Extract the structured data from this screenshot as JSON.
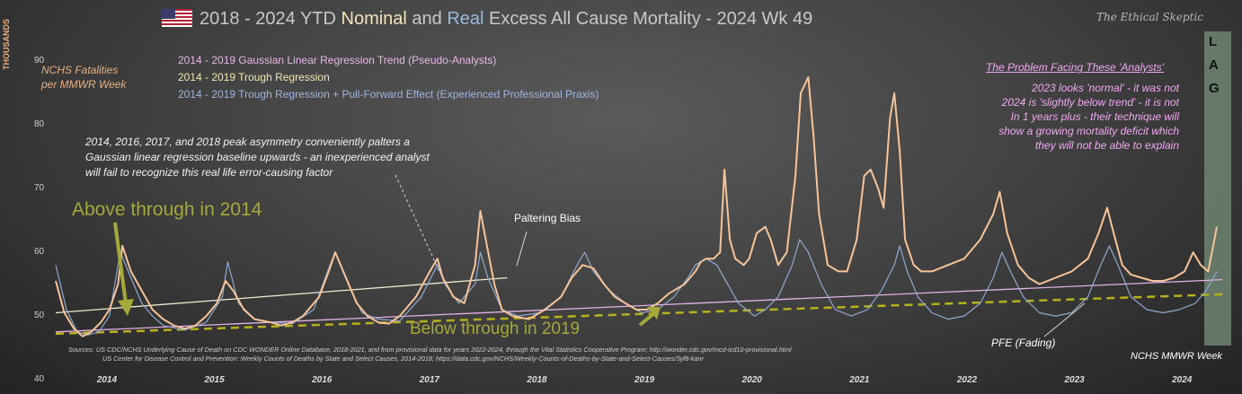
{
  "title": {
    "prefix": "2018 - 2024 YTD ",
    "nominal": "Nominal",
    "and": " and ",
    "real": "Real",
    "suffix": " Excess All Cause Mortality - 2024 Wk 49"
  },
  "brand": "The Ethical Skeptic",
  "y_axis_title": "THOUSANDS",
  "y_note": [
    "NCHS Fatalities",
    "per MMWR Week"
  ],
  "legend": [
    {
      "text": "2014 - 2019 Gaussian Linear Regression Trend (Pseudo-Analysts)",
      "color": "#e9b8ea"
    },
    {
      "text": "2014 - 2019 Trough Regression",
      "color": "#f2e6b0"
    },
    {
      "text": "2014 - 2019 Trough Regression + Pull-Forward Effect (Experienced Professional Praxis)",
      "color": "#9fb6df"
    }
  ],
  "annotations": {
    "peak_note": [
      "2014, 2016, 2017, and 2018 peak asymmetry conveniently palters a",
      "Gaussian linear regression baseline upwards - an inexperienced analyst",
      "will fail to recognize this real life error-causing factor"
    ],
    "above": "Above through in 2014",
    "below": "Below through in 2019",
    "paltering": "Paltering Bias",
    "problem_title": "The Problem Facing These 'Analysts'",
    "problem_lines": [
      "2023 looks 'normal' - it was not",
      "2024 is 'slightly below trend' - it is not",
      "In 1 years plus - their technique will",
      "show a growing mortality deficit which",
      "they will not be able to explain"
    ],
    "pfe": "PFE (Fading)",
    "mmwr": "NCHS MMWR Week",
    "lag": [
      "L",
      "A",
      "G"
    ]
  },
  "sources": [
    "Sources: US CDC/NCHS Underlying Cause of Death on CDC WONDER Online Database, 2018-2021, and from provisional data for years 2022-2024, through the Vital Statistics Cooperative Program; http://wonder.cdc.gov/mcd-icd10-provisional.html",
    "US Center for Disease Control and Prevention: Weekly Counts of Deaths by State and Select Causes, 2014-2018; https://data.cdc.gov/NCHS/Weekly-Counts-of-Deaths-by-State-and-Select-Causes/3yf8-kanr"
  ],
  "colors": {
    "nominal": "#f6c49a",
    "real": "#8fa9d0",
    "gaussian": "#e3b1e6",
    "trough": "#f4ead0",
    "pfe": "#b8b01c",
    "accent_green": "#a5a93a"
  },
  "chart_data": {
    "type": "line",
    "title": "2018 - 2024 YTD Nominal and Real Excess All Cause Mortality - 2024 Wk 49",
    "ylabel": "THOUSANDS",
    "ylim": [
      40,
      93
    ],
    "x_ticks": [
      "2014",
      "2015",
      "2016",
      "2017",
      "2018",
      "2019",
      "2020",
      "2021",
      "2022",
      "2023",
      "2024"
    ],
    "y_ticks": [
      40,
      50,
      60,
      70,
      80,
      90
    ],
    "grid": false,
    "legend_position": "top-left",
    "series": [
      {
        "name": "NCHS Fatalities per MMWR Week",
        "points": [
          [
            2014.0,
            55.5
          ],
          [
            2014.08,
            50.5
          ],
          [
            2014.17,
            48
          ],
          [
            2014.25,
            46.8
          ],
          [
            2014.33,
            47.5
          ],
          [
            2014.42,
            49
          ],
          [
            2014.5,
            51
          ],
          [
            2014.58,
            55
          ],
          [
            2014.62,
            61
          ],
          [
            2014.7,
            57
          ],
          [
            2014.8,
            54
          ],
          [
            2014.9,
            51
          ],
          [
            2015.0,
            49.5
          ],
          [
            2015.1,
            48.5
          ],
          [
            2015.2,
            48
          ],
          [
            2015.3,
            48.5
          ],
          [
            2015.4,
            50
          ],
          [
            2015.5,
            52
          ],
          [
            2015.58,
            55.5
          ],
          [
            2015.65,
            54
          ],
          [
            2015.75,
            51
          ],
          [
            2015.85,
            49.5
          ],
          [
            2016.0,
            49
          ],
          [
            2016.1,
            48.5
          ],
          [
            2016.2,
            49
          ],
          [
            2016.3,
            50
          ],
          [
            2016.45,
            53
          ],
          [
            2016.55,
            57.5
          ],
          [
            2016.6,
            60
          ],
          [
            2016.7,
            56
          ],
          [
            2016.8,
            52
          ],
          [
            2016.9,
            50
          ],
          [
            2017.0,
            49
          ],
          [
            2017.1,
            48.8
          ],
          [
            2017.2,
            50
          ],
          [
            2017.35,
            53
          ],
          [
            2017.48,
            57
          ],
          [
            2017.55,
            59
          ],
          [
            2017.6,
            56
          ],
          [
            2017.7,
            53
          ],
          [
            2017.8,
            52
          ],
          [
            2017.9,
            58
          ],
          [
            2017.95,
            66.5
          ],
          [
            2018.0,
            62
          ],
          [
            2018.08,
            55
          ],
          [
            2018.15,
            51
          ],
          [
            2018.25,
            50
          ],
          [
            2018.4,
            49.5
          ],
          [
            2018.55,
            51
          ],
          [
            2018.7,
            53
          ],
          [
            2018.8,
            56
          ],
          [
            2018.9,
            58
          ],
          [
            2019.0,
            57.5
          ],
          [
            2019.1,
            55
          ],
          [
            2019.2,
            53
          ],
          [
            2019.3,
            52
          ],
          [
            2019.4,
            51
          ],
          [
            2019.5,
            51
          ],
          [
            2019.6,
            52
          ],
          [
            2019.7,
            53.5
          ],
          [
            2019.85,
            55
          ],
          [
            2019.95,
            57
          ],
          [
            2020.0,
            58.5
          ],
          [
            2020.05,
            59
          ],
          [
            2020.12,
            59
          ],
          [
            2020.18,
            60
          ],
          [
            2020.22,
            73
          ],
          [
            2020.27,
            62
          ],
          [
            2020.32,
            59
          ],
          [
            2020.4,
            58
          ],
          [
            2020.45,
            59
          ],
          [
            2020.52,
            63
          ],
          [
            2020.6,
            64
          ],
          [
            2020.65,
            62
          ],
          [
            2020.72,
            58
          ],
          [
            2020.8,
            60
          ],
          [
            2020.88,
            72
          ],
          [
            2020.93,
            85
          ],
          [
            2021.0,
            87.5
          ],
          [
            2021.05,
            78
          ],
          [
            2021.1,
            66
          ],
          [
            2021.18,
            58
          ],
          [
            2021.28,
            57
          ],
          [
            2021.36,
            57
          ],
          [
            2021.45,
            62
          ],
          [
            2021.52,
            72
          ],
          [
            2021.58,
            73
          ],
          [
            2021.65,
            70
          ],
          [
            2021.7,
            67
          ],
          [
            2021.76,
            81
          ],
          [
            2021.8,
            85
          ],
          [
            2021.85,
            76
          ],
          [
            2021.9,
            62
          ],
          [
            2021.98,
            58
          ],
          [
            2022.05,
            57
          ],
          [
            2022.15,
            57
          ],
          [
            2022.3,
            58
          ],
          [
            2022.45,
            59
          ],
          [
            2022.6,
            62
          ],
          [
            2022.72,
            66
          ],
          [
            2022.78,
            69.5
          ],
          [
            2022.85,
            63
          ],
          [
            2022.95,
            58
          ],
          [
            2023.05,
            56
          ],
          [
            2023.15,
            55
          ],
          [
            2023.3,
            56
          ],
          [
            2023.45,
            57
          ],
          [
            2023.6,
            59
          ],
          [
            2023.7,
            63
          ],
          [
            2023.78,
            67
          ],
          [
            2023.84,
            63
          ],
          [
            2023.92,
            58
          ],
          [
            2024.0,
            56.5
          ],
          [
            2024.1,
            56
          ],
          [
            2024.2,
            55.5
          ],
          [
            2024.3,
            55.5
          ],
          [
            2024.4,
            56
          ],
          [
            2024.5,
            57
          ],
          [
            2024.58,
            60
          ],
          [
            2024.65,
            58
          ],
          [
            2024.72,
            57
          ],
          [
            2024.8,
            64
          ]
        ]
      },
      {
        "name": "Real (Excess)",
        "points": [
          [
            2014.0,
            58
          ],
          [
            2014.1,
            51
          ],
          [
            2014.2,
            47.5
          ],
          [
            2014.3,
            47
          ],
          [
            2014.4,
            47.5
          ],
          [
            2014.5,
            50
          ],
          [
            2014.6,
            60
          ],
          [
            2014.7,
            56
          ],
          [
            2014.8,
            52
          ],
          [
            2014.9,
            50
          ],
          [
            2015.0,
            48.5
          ],
          [
            2015.2,
            47.8
          ],
          [
            2015.4,
            49
          ],
          [
            2015.55,
            53
          ],
          [
            2015.6,
            58.5
          ],
          [
            2015.7,
            52
          ],
          [
            2015.85,
            49.5
          ],
          [
            2016.0,
            49
          ],
          [
            2016.2,
            48.8
          ],
          [
            2016.4,
            51
          ],
          [
            2016.55,
            58
          ],
          [
            2016.6,
            60
          ],
          [
            2016.72,
            55
          ],
          [
            2016.85,
            50.5
          ],
          [
            2017.0,
            49.5
          ],
          [
            2017.2,
            49.2
          ],
          [
            2017.4,
            53
          ],
          [
            2017.55,
            58
          ],
          [
            2017.62,
            55
          ],
          [
            2017.75,
            52
          ],
          [
            2017.9,
            55
          ],
          [
            2017.95,
            60
          ],
          [
            2018.02,
            56
          ],
          [
            2018.15,
            51
          ],
          [
            2018.3,
            50
          ],
          [
            2018.5,
            50.5
          ],
          [
            2018.7,
            53
          ],
          [
            2018.85,
            58
          ],
          [
            2018.92,
            60
          ],
          [
            2019.0,
            57
          ],
          [
            2019.15,
            54
          ],
          [
            2019.3,
            52
          ],
          [
            2019.45,
            50.5
          ],
          [
            2019.6,
            51
          ],
          [
            2019.75,
            53
          ],
          [
            2019.88,
            56
          ],
          [
            2019.95,
            58
          ],
          [
            2020.05,
            59
          ],
          [
            2020.15,
            58
          ],
          [
            2020.25,
            55
          ],
          [
            2020.35,
            52
          ],
          [
            2020.5,
            50
          ],
          [
            2020.6,
            51
          ],
          [
            2020.72,
            53
          ],
          [
            2020.85,
            58
          ],
          [
            2020.92,
            62
          ],
          [
            2021.0,
            60
          ],
          [
            2021.12,
            55
          ],
          [
            2021.25,
            51
          ],
          [
            2021.4,
            50
          ],
          [
            2021.55,
            51
          ],
          [
            2021.68,
            54
          ],
          [
            2021.8,
            58
          ],
          [
            2021.85,
            61
          ],
          [
            2021.92,
            57
          ],
          [
            2022.02,
            53
          ],
          [
            2022.15,
            50.5
          ],
          [
            2022.3,
            49.5
          ],
          [
            2022.45,
            50
          ],
          [
            2022.6,
            52
          ],
          [
            2022.72,
            56
          ],
          [
            2022.8,
            60
          ],
          [
            2022.88,
            57
          ],
          [
            2023.0,
            53
          ],
          [
            2023.15,
            50.5
          ],
          [
            2023.3,
            50
          ],
          [
            2023.45,
            50.5
          ],
          [
            2023.6,
            53
          ],
          [
            2023.72,
            58
          ],
          [
            2023.8,
            61
          ],
          [
            2023.88,
            58
          ],
          [
            2024.0,
            53
          ],
          [
            2024.15,
            51
          ],
          [
            2024.3,
            50.5
          ],
          [
            2024.45,
            51
          ],
          [
            2024.6,
            52
          ],
          [
            2024.7,
            54
          ],
          [
            2024.8,
            57
          ]
        ]
      }
    ],
    "trend_lines": [
      {
        "name": "2014 - 2019 Gaussian Linear Regression Trend (Pseudo-Analysts)",
        "from": [
          2014.0,
          47.5
        ],
        "to": [
          2024.85,
          55.7
        ]
      },
      {
        "name": "2014 - 2019 Trough Regression",
        "from": [
          2014.0,
          50.5
        ],
        "to": [
          2018.2,
          56.0
        ]
      },
      {
        "name": "2014 - 2019 Trough Regression + Pull-Forward Effect (Experienced Professional Praxis)",
        "from": [
          2014.0,
          47.2
        ],
        "to": [
          2024.85,
          53.4
        ]
      }
    ]
  }
}
